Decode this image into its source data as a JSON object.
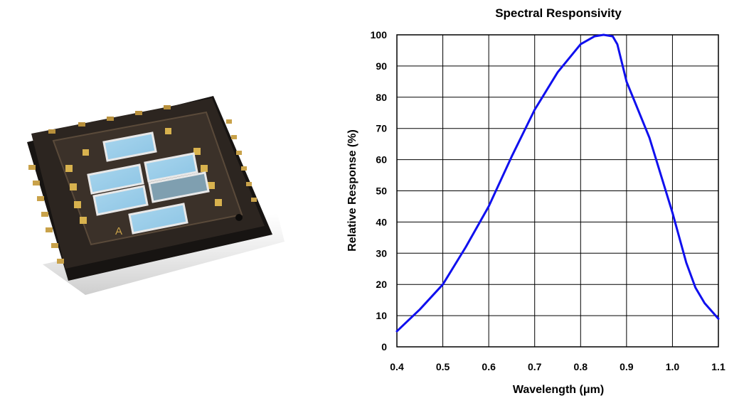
{
  "chart_data": {
    "type": "line",
    "title": "Spectral Responsivity",
    "xlabel": "Wavelength (μm)",
    "ylabel": "Relative Response (%)",
    "xlim": [
      0.4,
      1.1
    ],
    "ylim": [
      0,
      100
    ],
    "x_ticks": [
      "0.4",
      "0.5",
      "0.6",
      "0.7",
      "0.8",
      "0.9",
      "1.0",
      "1.1"
    ],
    "y_ticks": [
      "0",
      "10",
      "20",
      "30",
      "40",
      "50",
      "60",
      "70",
      "80",
      "90",
      "100"
    ],
    "grid": true,
    "series": [
      {
        "color": "#1010ee",
        "x": [
          0.4,
          0.45,
          0.5,
          0.55,
          0.6,
          0.65,
          0.7,
          0.75,
          0.8,
          0.83,
          0.85,
          0.87,
          0.88,
          0.9,
          0.95,
          1.0,
          1.03,
          1.05,
          1.07,
          1.1
        ],
        "y": [
          5,
          12,
          20,
          32,
          45,
          61,
          76,
          88,
          97,
          99.5,
          100,
          99.5,
          97,
          85,
          67,
          43,
          27,
          19,
          14,
          9
        ]
      }
    ]
  },
  "photo": {
    "pad_label": "A"
  }
}
